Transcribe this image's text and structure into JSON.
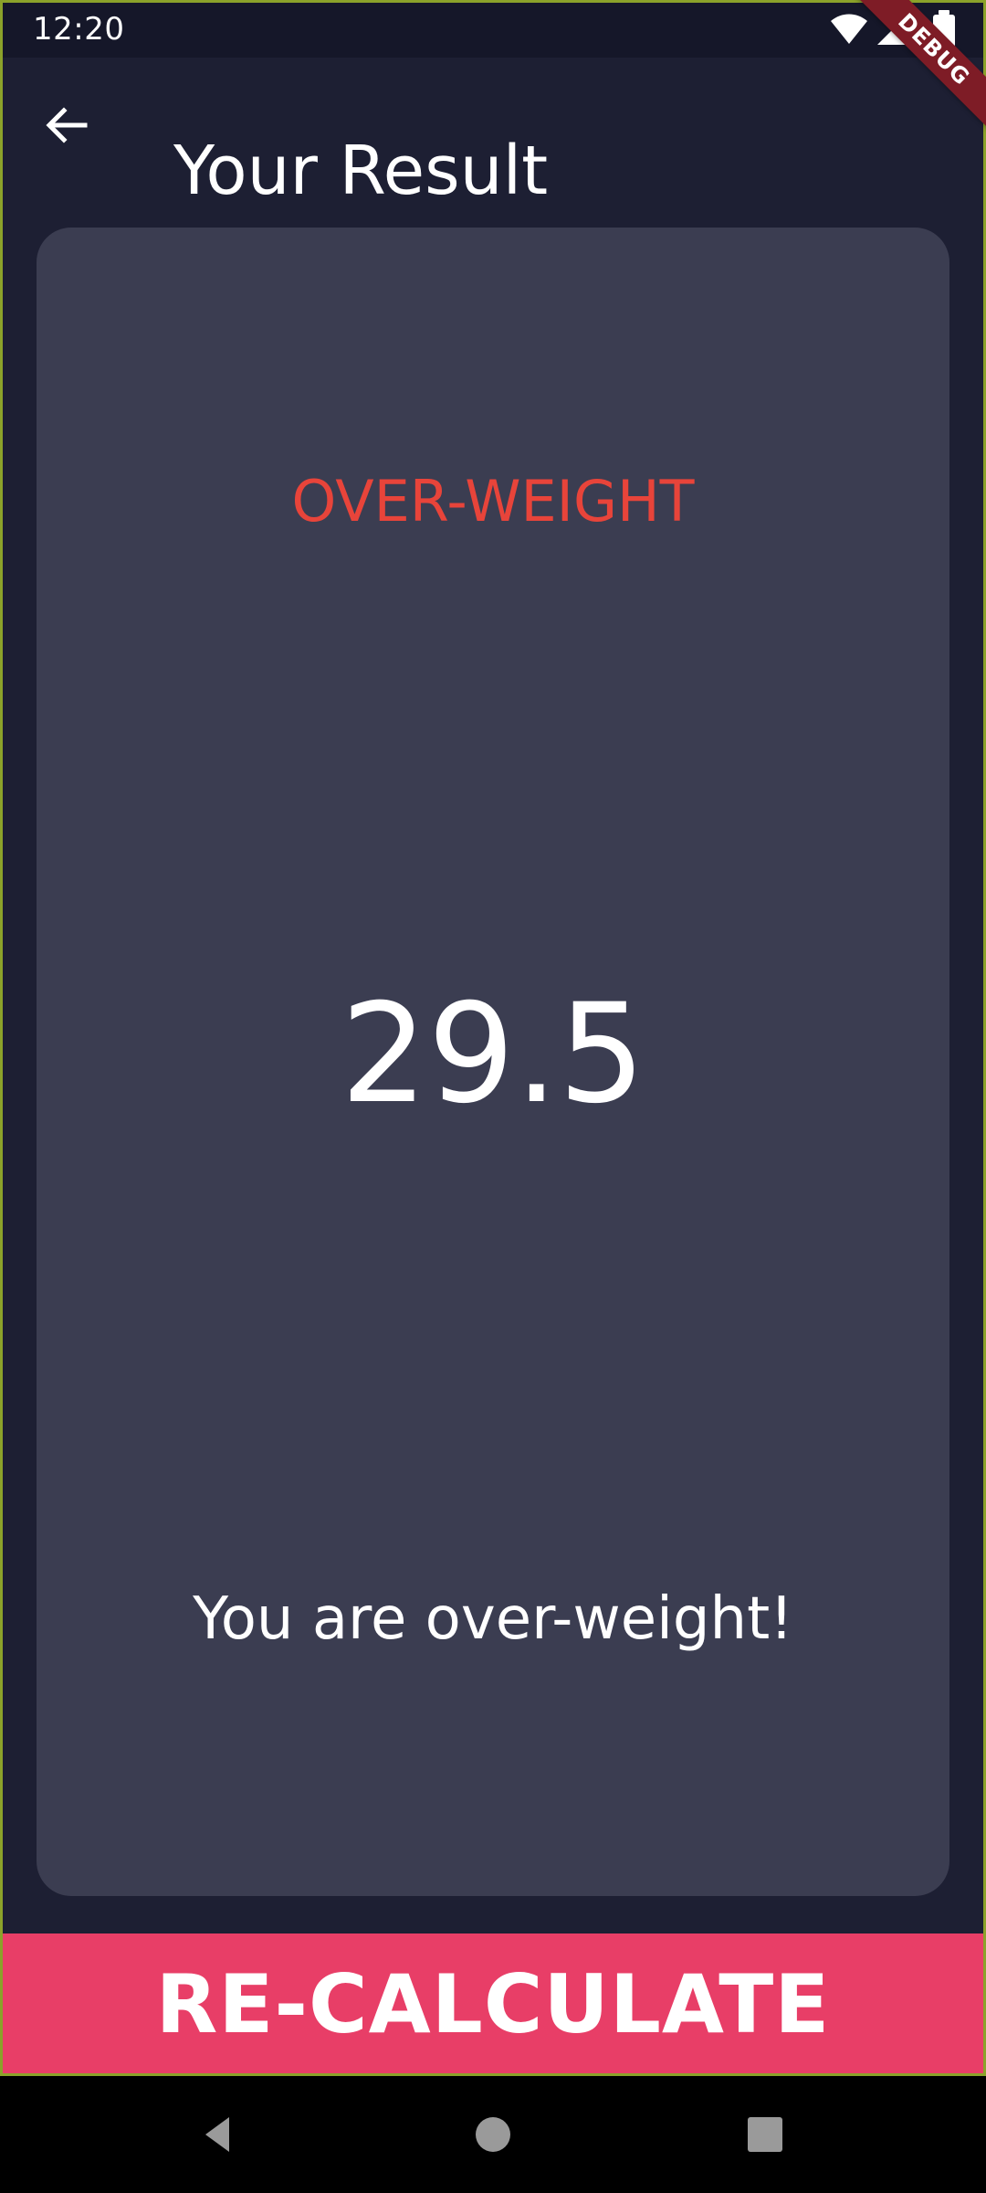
{
  "status_bar": {
    "time": "12:20",
    "icons": [
      "wifi-icon",
      "cellular-icon",
      "battery-icon"
    ]
  },
  "debug_banner": {
    "label": "DEBUG"
  },
  "app_bar": {
    "back_icon": "arrow-left-icon",
    "title": "Your Result"
  },
  "result": {
    "category": "OVER-WEIGHT",
    "value": "29.5",
    "message": "You are over-weight!"
  },
  "actions": {
    "recalculate_label": "RE-CALCULATE"
  },
  "navigation_bar": {
    "icons": [
      "back-triangle-icon",
      "home-circle-icon",
      "recents-square-icon"
    ]
  },
  "colors": {
    "background": "#1D1F33",
    "status_bar": "#151729",
    "card": "#3B3D51",
    "category": "#E8443A",
    "primary_action": "#E83E67",
    "text": "#FFFFFF"
  }
}
